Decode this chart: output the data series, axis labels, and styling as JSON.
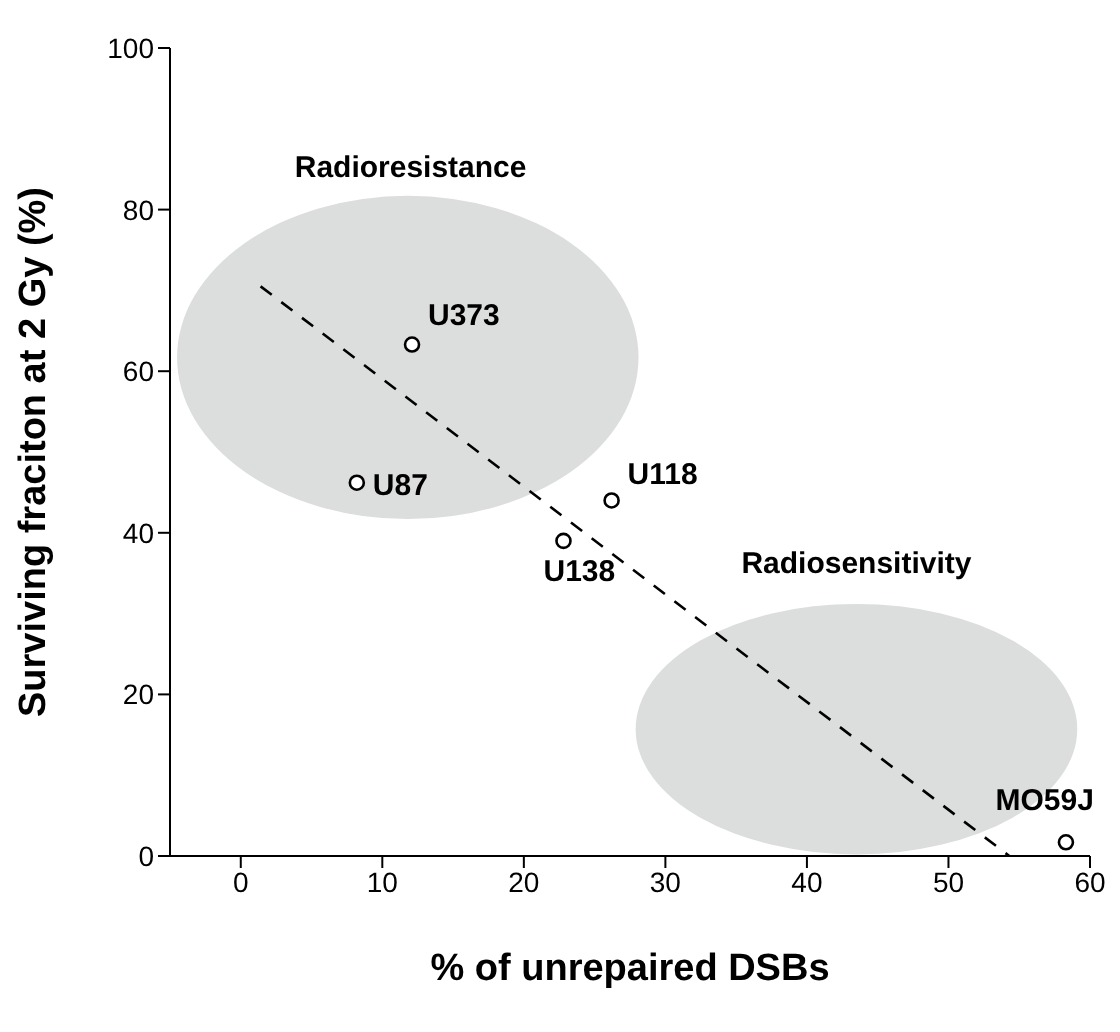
{
  "chart_data": {
    "type": "scatter",
    "xlabel": "% of unrepaired DSBs",
    "ylabel": "Surviving fraciton at 2 Gy (%)",
    "xlim": [
      -5,
      60
    ],
    "xticks": [
      0,
      10,
      20,
      30,
      40,
      50,
      60
    ],
    "ylim": [
      0,
      100
    ],
    "yticks": [
      0,
      20,
      40,
      60,
      80,
      100
    ],
    "marker": "circle",
    "series": [
      {
        "color": "#000000",
        "x": [
          12.1,
          8.2,
          26.2,
          22.8,
          58.3
        ],
        "values": [
          63.3,
          46.2,
          44.0,
          39.0,
          1.7
        ]
      },
      {
        "type": "line",
        "color": "#000000",
        "line_style": "dashed",
        "marker": "none",
        "x": [
          1.4,
          54.3
        ],
        "values": [
          70.5,
          0
        ]
      }
    ],
    "annotations": [
      {
        "text": "U373",
        "x": 12.1,
        "y": 63.3
      },
      {
        "text": "U87",
        "x": 8.2,
        "y": 46.2
      },
      {
        "text": "U118",
        "x": 26.2,
        "y": 44.0
      },
      {
        "text": "U138",
        "x": 22.8,
        "y": 39.0
      },
      {
        "text": "MO59J",
        "x": 58.3,
        "y": 1.7
      },
      "Radioresistance",
      "Radiosensitivity"
    ]
  }
}
